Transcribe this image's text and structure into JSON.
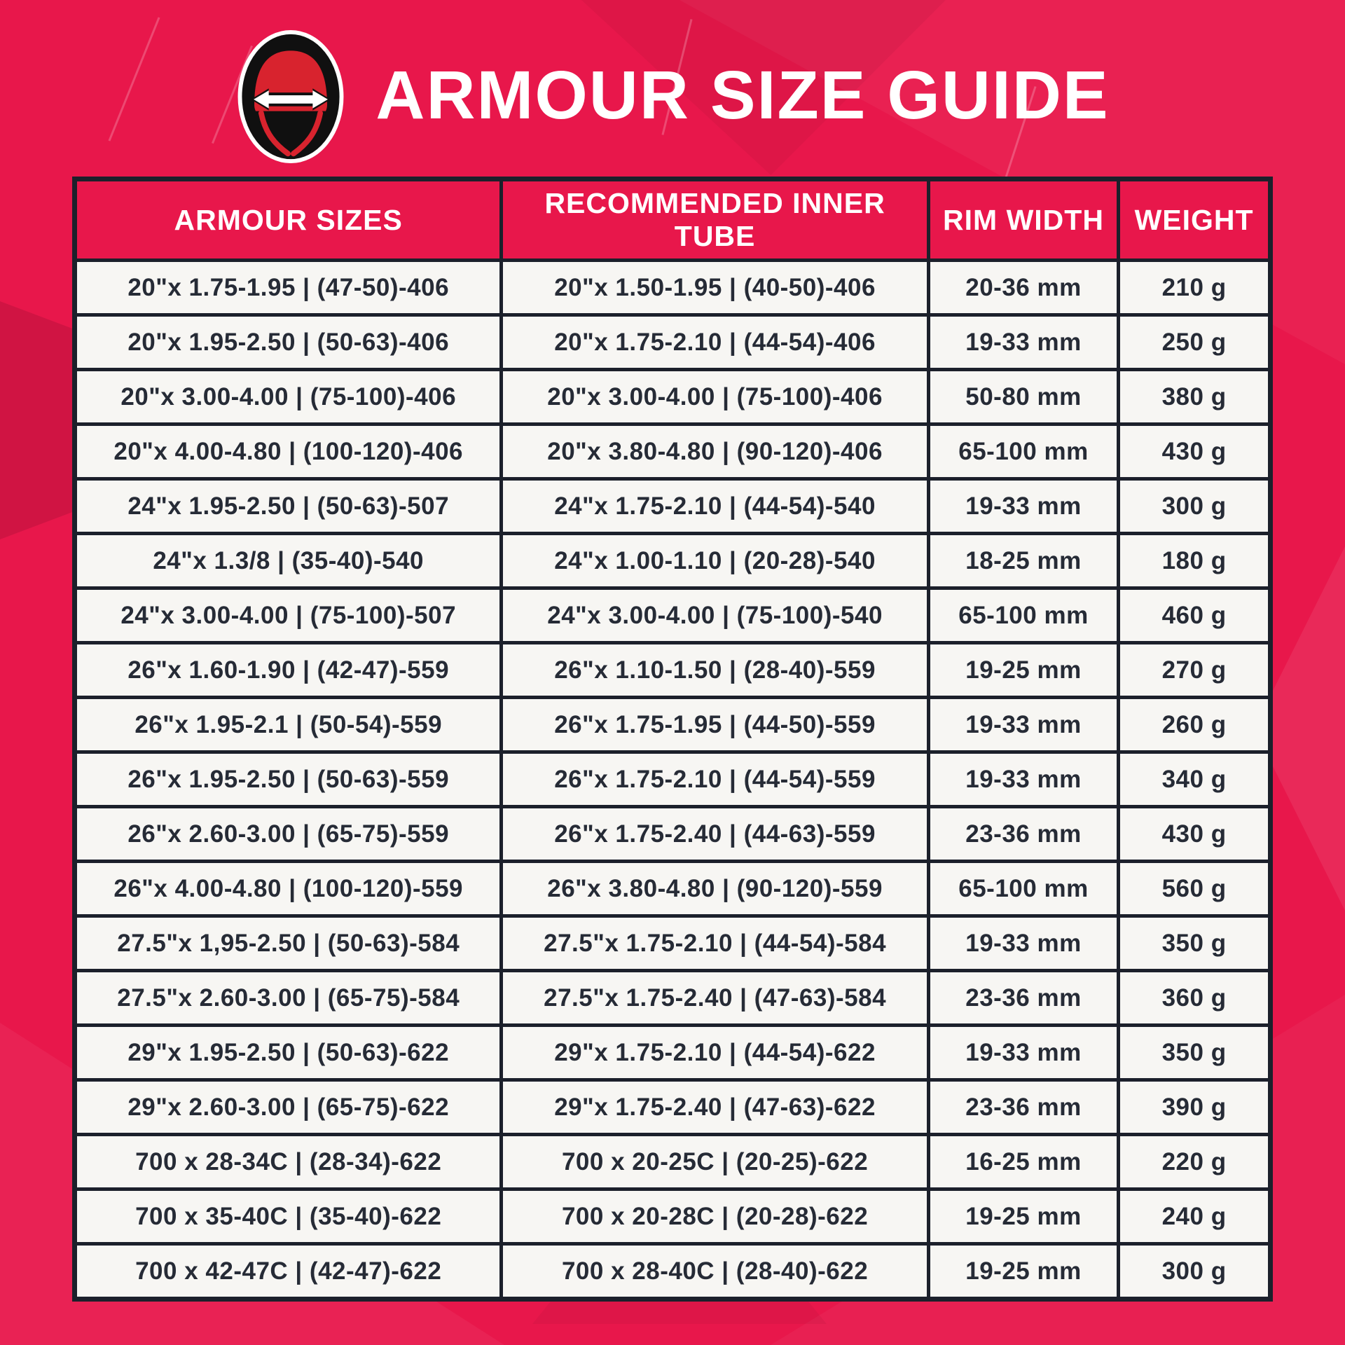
{
  "page": {
    "title": "ARMOUR SIZE GUIDE"
  },
  "colors": {
    "background": "#E8174B",
    "header_bg": "#E8174B",
    "row_bg": "#F7F6F3",
    "border": "#1C202B",
    "text_dark": "#262B36",
    "title_text": "#FFFFFF",
    "logo_red": "#D8232E",
    "logo_black": "#101010"
  },
  "logo": {
    "icon": "tire-cross-section-with-width-arrow"
  },
  "table": {
    "headers": [
      "ARMOUR SIZES",
      "RECOMMENDED INNER TUBE",
      "RIM WIDTH",
      "WEIGHT"
    ],
    "rows": [
      [
        "20\"x 1.75-1.95 | (47-50)-406",
        "20\"x 1.50-1.95 | (40-50)-406",
        "20-36 mm",
        "210 g"
      ],
      [
        "20\"x 1.95-2.50 | (50-63)-406",
        "20\"x 1.75-2.10 | (44-54)-406",
        "19-33 mm",
        "250 g"
      ],
      [
        "20\"x 3.00-4.00 | (75-100)-406",
        "20\"x 3.00-4.00 | (75-100)-406",
        "50-80 mm",
        "380 g"
      ],
      [
        "20\"x 4.00-4.80 | (100-120)-406",
        "20\"x 3.80-4.80 | (90-120)-406",
        "65-100 mm",
        "430 g"
      ],
      [
        "24\"x 1.95-2.50 | (50-63)-507",
        "24\"x 1.75-2.10 | (44-54)-540",
        "19-33 mm",
        "300 g"
      ],
      [
        "24\"x 1.3/8 | (35-40)-540",
        "24\"x 1.00-1.10 | (20-28)-540",
        "18-25 mm",
        "180 g"
      ],
      [
        "24\"x 3.00-4.00 | (75-100)-507",
        "24\"x 3.00-4.00 | (75-100)-540",
        "65-100 mm",
        "460 g"
      ],
      [
        "26\"x 1.60-1.90 | (42-47)-559",
        "26\"x 1.10-1.50 | (28-40)-559",
        "19-25 mm",
        "270 g"
      ],
      [
        "26\"x 1.95-2.1 | (50-54)-559",
        "26\"x 1.75-1.95 | (44-50)-559",
        "19-33 mm",
        "260 g"
      ],
      [
        "26\"x 1.95-2.50 | (50-63)-559",
        "26\"x 1.75-2.10 | (44-54)-559",
        "19-33 mm",
        "340 g"
      ],
      [
        "26\"x 2.60-3.00 | (65-75)-559",
        "26\"x 1.75-2.40 | (44-63)-559",
        "23-36 mm",
        "430 g"
      ],
      [
        "26\"x 4.00-4.80 | (100-120)-559",
        "26\"x 3.80-4.80 | (90-120)-559",
        "65-100 mm",
        "560 g"
      ],
      [
        "27.5\"x 1,95-2.50 | (50-63)-584",
        "27.5\"x 1.75-2.10 | (44-54)-584",
        "19-33 mm",
        "350 g"
      ],
      [
        "27.5\"x 2.60-3.00 | (65-75)-584",
        "27.5\"x 1.75-2.40 | (47-63)-584",
        "23-36 mm",
        "360 g"
      ],
      [
        "29\"x 1.95-2.50 | (50-63)-622",
        "29\"x 1.75-2.10 | (44-54)-622",
        "19-33 mm",
        "350 g"
      ],
      [
        "29\"x 2.60-3.00 | (65-75)-622",
        "29\"x 1.75-2.40 | (47-63)-622",
        "23-36 mm",
        "390 g"
      ],
      [
        "700 x 28-34C | (28-34)-622",
        "700 x 20-25C | (20-25)-622",
        "16-25 mm",
        "220 g"
      ],
      [
        "700 x 35-40C | (35-40)-622",
        "700 x 20-28C | (20-28)-622",
        "19-25 mm",
        "240 g"
      ],
      [
        "700 x 42-47C | (42-47)-622",
        "700 x 28-40C | (28-40)-622",
        "19-25 mm",
        "300 g"
      ]
    ]
  }
}
